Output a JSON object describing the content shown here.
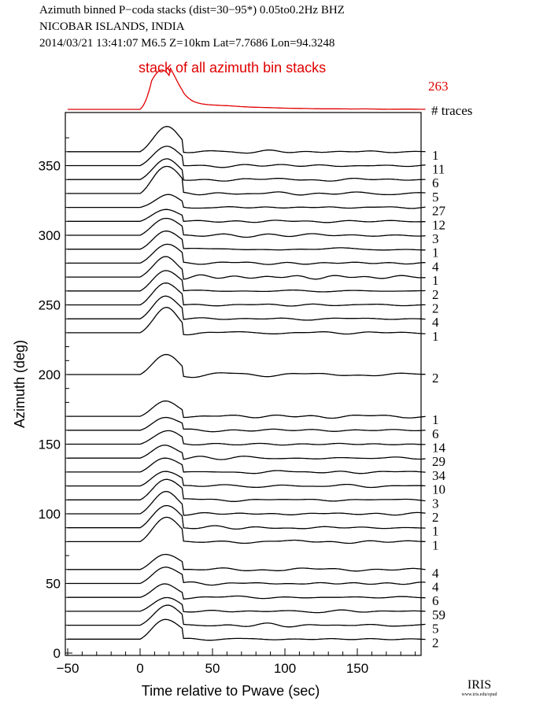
{
  "header": {
    "line1": "Azimuth binned P−coda stacks (dist=30−95*)  0.05to0.2Hz  BHZ",
    "line2": "NICOBAR ISLANDS, INDIA",
    "line3": "2014/03/21  13:41:07  M6.5  Z=10km Lat=7.7686 Lon=94.3248"
  },
  "chart_data": {
    "type": "line",
    "title": "stack of all azimuth bin stacks",
    "total_traces": "263",
    "count_header": "# traces",
    "xlabel": "Time relative to Pwave (sec)",
    "ylabel": "Azimuth (deg)",
    "xlim": [
      -50,
      200
    ],
    "ylim": [
      0,
      380
    ],
    "xticks": [
      -50,
      0,
      50,
      100,
      150
    ],
    "yticks": [
      0,
      50,
      100,
      150,
      200,
      250,
      300,
      350
    ],
    "bins": [
      {
        "azimuth": 360,
        "traces": "1"
      },
      {
        "azimuth": 350,
        "traces": "11"
      },
      {
        "azimuth": 340,
        "traces": "6"
      },
      {
        "azimuth": 330,
        "traces": "5"
      },
      {
        "azimuth": 320,
        "traces": "27"
      },
      {
        "azimuth": 310,
        "traces": "12"
      },
      {
        "azimuth": 300,
        "traces": "3"
      },
      {
        "azimuth": 290,
        "traces": "1"
      },
      {
        "azimuth": 280,
        "traces": "4"
      },
      {
        "azimuth": 270,
        "traces": "1"
      },
      {
        "azimuth": 260,
        "traces": "2"
      },
      {
        "azimuth": 250,
        "traces": "2"
      },
      {
        "azimuth": 240,
        "traces": "4"
      },
      {
        "azimuth": 230,
        "traces": "1"
      },
      {
        "azimuth": 200,
        "traces": "2"
      },
      {
        "azimuth": 170,
        "traces": "1"
      },
      {
        "azimuth": 160,
        "traces": "6"
      },
      {
        "azimuth": 150,
        "traces": "14"
      },
      {
        "azimuth": 140,
        "traces": "29"
      },
      {
        "azimuth": 130,
        "traces": "34"
      },
      {
        "azimuth": 120,
        "traces": "10"
      },
      {
        "azimuth": 110,
        "traces": "3"
      },
      {
        "azimuth": 100,
        "traces": "2"
      },
      {
        "azimuth": 90,
        "traces": "1"
      },
      {
        "azimuth": 80,
        "traces": "1"
      },
      {
        "azimuth": 60,
        "traces": "4"
      },
      {
        "azimuth": 50,
        "traces": "4"
      },
      {
        "azimuth": 40,
        "traces": "6"
      },
      {
        "azimuth": 30,
        "traces": "59"
      },
      {
        "azimuth": 20,
        "traces": "5"
      },
      {
        "azimuth": 10,
        "traces": "2"
      }
    ]
  },
  "logo": {
    "text": "IRIS",
    "sub": "www.iris.edu/spud"
  }
}
